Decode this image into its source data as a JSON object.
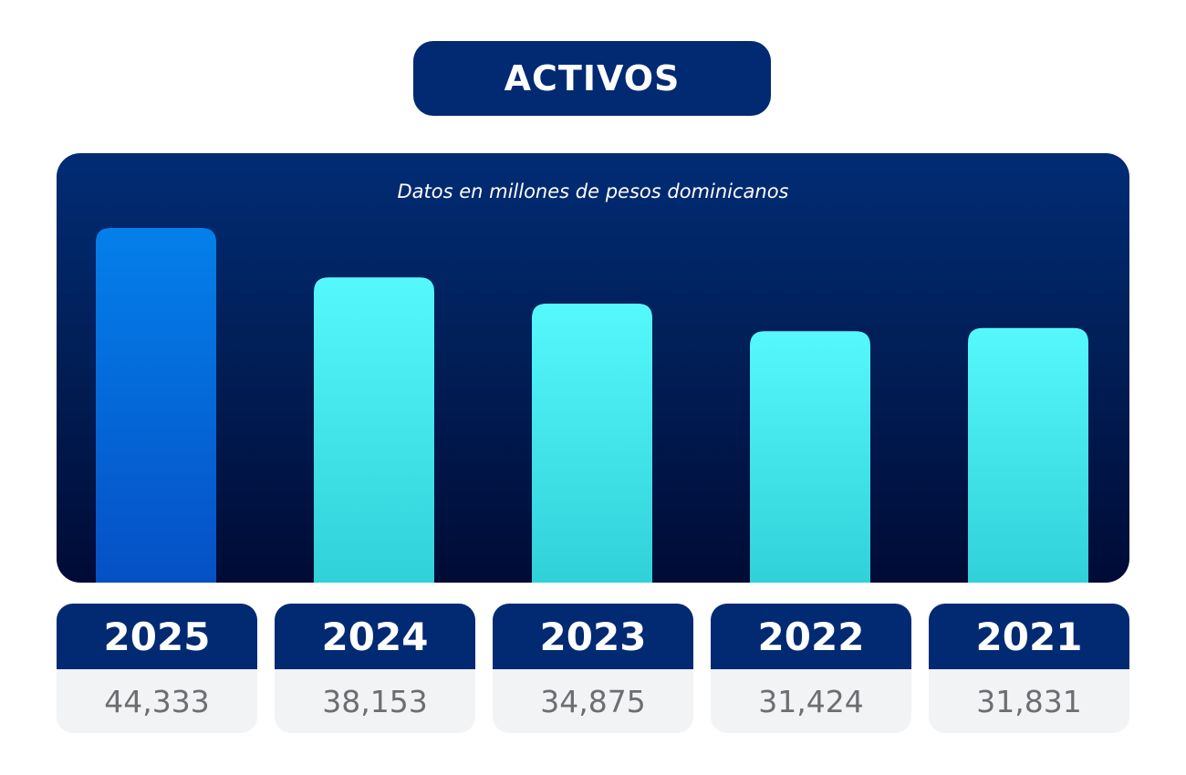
{
  "title": "ACTIVOS",
  "subtitle": "Datos en millones de pesos dominicanos",
  "colors": {
    "title_bg": "#012a73",
    "panel_top": "#012c75",
    "panel_bottom": "#000b36",
    "highlight_bar_top": "#0480ea",
    "highlight_bar_bottom": "#0550c5",
    "bar_top": "#55f8fc",
    "bar_bottom": "#30d1d8",
    "value_text": "#6d6e72",
    "card_bg": "#f2f3f5"
  },
  "chart_data": {
    "type": "bar",
    "title": "ACTIVOS",
    "subtitle": "Datos en millones de pesos dominicanos",
    "categories": [
      "2025",
      "2024",
      "2023",
      "2022",
      "2021"
    ],
    "values": [
      44333,
      38153,
      34875,
      31424,
      31831
    ],
    "value_labels": [
      "44,333",
      "38,153",
      "34,875",
      "31,424",
      "31,831"
    ],
    "highlighted_category": "2025",
    "ylim": [
      0,
      46000
    ],
    "xlabel": "",
    "ylabel": "",
    "grid": false,
    "legend": "none"
  }
}
